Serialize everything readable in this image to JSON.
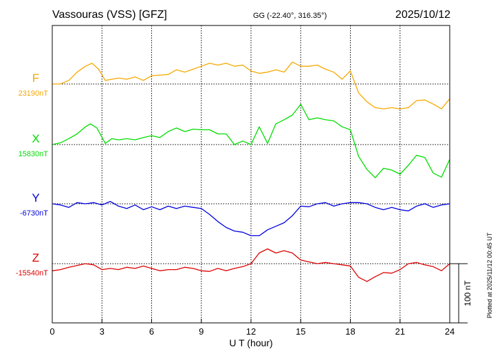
{
  "header": {
    "station": "Vassouras (VSS)  [GFZ]",
    "coords": "GG (-22.40°, 316.35°)",
    "date": "2025/10/12"
  },
  "side_note": "Plotted at 2025/11/12 00:45 UT",
  "chart_data": {
    "type": "line",
    "title": "Vassouras (VSS)  [GFZ]",
    "xlabel": "U T (hour)",
    "xlim": [
      0,
      24
    ],
    "xticks": [
      "0",
      "3",
      "6",
      "9",
      "12",
      "15",
      "18",
      "21",
      "24"
    ],
    "grid": true,
    "scale_bar": "100 nT",
    "scale_bar_value": 100,
    "series": [
      {
        "name": "F",
        "baseline_label": "23190nT",
        "baseline": 23190,
        "color": "#f5a800",
        "x": [
          0,
          0.5,
          1,
          1.5,
          2,
          2.4,
          2.8,
          3.2,
          3.6,
          4,
          4.5,
          5,
          5.5,
          6,
          6.5,
          7,
          7.5,
          8,
          8.5,
          9,
          9.5,
          10,
          10.5,
          11,
          11.5,
          12,
          12.5,
          13,
          13.5,
          14,
          14.5,
          15,
          15.5,
          16,
          16.5,
          17,
          17.5,
          18,
          18.5,
          19,
          19.5,
          20,
          20.5,
          21,
          21.5,
          22,
          22.5,
          23,
          23.5,
          24
        ],
        "y": [
          23190,
          23190,
          23196,
          23210,
          23220,
          23225,
          23215,
          23196,
          23198,
          23200,
          23198,
          23202,
          23196,
          23204,
          23205,
          23206,
          23214,
          23210,
          23215,
          23220,
          23225,
          23222,
          23225,
          23220,
          23222,
          23212,
          23208,
          23210,
          23214,
          23210,
          23227,
          23220,
          23220,
          23222,
          23215,
          23210,
          23198,
          23212,
          23175,
          23160,
          23150,
          23148,
          23150,
          23148,
          23150,
          23162,
          23163,
          23156,
          23148,
          23165
        ]
      },
      {
        "name": "X",
        "baseline_label": "15830nT",
        "baseline": 15830,
        "color": "#00dd00",
        "x": [
          0,
          0.5,
          1,
          1.5,
          2,
          2.3,
          2.7,
          3.2,
          3.6,
          4,
          4.5,
          5,
          5.5,
          6,
          6.5,
          7,
          7.5,
          8,
          8.5,
          9,
          9.5,
          10,
          10.5,
          11,
          11.5,
          12,
          12.5,
          13,
          13.5,
          14,
          14.5,
          15,
          15.5,
          16,
          16.5,
          17,
          17.5,
          18,
          18.5,
          19,
          19.5,
          20,
          20.5,
          21,
          21.5,
          22,
          22.5,
          23,
          23.5,
          24
        ],
        "y": [
          15830,
          15833,
          15840,
          15848,
          15860,
          15865,
          15858,
          15832,
          15840,
          15838,
          15840,
          15838,
          15842,
          15845,
          15842,
          15852,
          15858,
          15852,
          15856,
          15855,
          15855,
          15848,
          15848,
          15830,
          15836,
          15830,
          15860,
          15832,
          15865,
          15872,
          15880,
          15898,
          15872,
          15875,
          15872,
          15870,
          15860,
          15855,
          15810,
          15788,
          15774,
          15790,
          15787,
          15780,
          15795,
          15812,
          15808,
          15782,
          15775,
          15805
        ]
      },
      {
        "name": "Y",
        "baseline_label": "-6730nT",
        "baseline": -6730,
        "color": "#0000dd",
        "x": [
          0,
          0.5,
          1,
          1.5,
          2,
          2.5,
          3,
          3.5,
          4,
          4.5,
          5,
          5.5,
          6,
          6.5,
          7,
          7.5,
          8,
          8.5,
          9,
          9.5,
          10,
          10.5,
          11,
          11.5,
          12,
          12.5,
          13,
          13.5,
          14,
          14.5,
          15,
          15.5,
          16,
          16.5,
          17,
          17.5,
          18,
          18.5,
          19,
          19.5,
          20,
          20.5,
          21,
          21.5,
          22,
          22.5,
          23,
          23.5,
          24
        ],
        "y": [
          -6730,
          -6732,
          -6736,
          -6728,
          -6730,
          -6728,
          -6732,
          -6726,
          -6734,
          -6738,
          -6732,
          -6740,
          -6735,
          -6740,
          -6734,
          -6738,
          -6734,
          -6736,
          -6738,
          -6748,
          -6760,
          -6770,
          -6776,
          -6778,
          -6784,
          -6784,
          -6774,
          -6768,
          -6762,
          -6750,
          -6734,
          -6735,
          -6730,
          -6728,
          -6734,
          -6730,
          -6728,
          -6728,
          -6730,
          -6736,
          -6740,
          -6736,
          -6740,
          -6742,
          -6734,
          -6730,
          -6736,
          -6732,
          -6730
        ]
      },
      {
        "name": "Z",
        "baseline_label": "-15540nT",
        "baseline": -15540,
        "color": "#dd0000",
        "x": [
          0,
          0.5,
          1,
          1.5,
          2,
          2.5,
          3,
          3.5,
          4,
          4.5,
          5,
          5.5,
          6,
          6.5,
          7,
          7.5,
          8,
          8.5,
          9,
          9.5,
          10,
          10.5,
          11,
          11.5,
          12,
          12.5,
          13,
          13.5,
          14,
          14.5,
          15,
          15.5,
          16,
          16.5,
          17,
          17.5,
          18,
          18.5,
          19,
          19.5,
          20,
          20.5,
          21,
          21.5,
          22,
          22.5,
          23,
          23.5,
          24
        ],
        "y": [
          -15552,
          -15550,
          -15546,
          -15543,
          -15540,
          -15542,
          -15550,
          -15548,
          -15550,
          -15546,
          -15548,
          -15544,
          -15548,
          -15552,
          -15550,
          -15550,
          -15546,
          -15548,
          -15552,
          -15553,
          -15548,
          -15552,
          -15548,
          -15545,
          -15540,
          -15522,
          -15515,
          -15522,
          -15518,
          -15522,
          -15534,
          -15537,
          -15540,
          -15538,
          -15540,
          -15542,
          -15544,
          -15563,
          -15570,
          -15562,
          -15555,
          -15556,
          -15550,
          -15540,
          -15538,
          -15542,
          -15545,
          -15552,
          -15540
        ]
      }
    ]
  }
}
